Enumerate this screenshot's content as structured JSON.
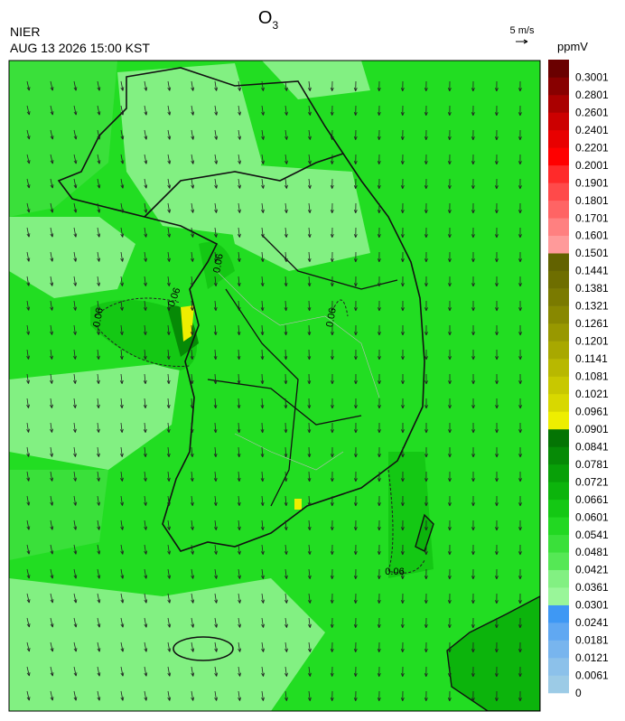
{
  "header": {
    "title": {
      "base": "O",
      "subscript": "3"
    },
    "agency": "NIER",
    "datetime": "AUG 13 2026 15:00 KST",
    "reference_vector": "5 m/s"
  },
  "colorbar": {
    "unit": "ppmV",
    "labels": [
      0,
      0.0061,
      0.0121,
      0.0181,
      0.0241,
      0.0301,
      0.0361,
      0.0421,
      0.0481,
      0.0541,
      0.0601,
      0.0661,
      0.0721,
      0.0781,
      0.0841,
      0.0901,
      0.0961,
      0.1021,
      0.1081,
      0.1141,
      0.1201,
      0.1261,
      0.1321,
      0.1381,
      0.1441,
      0.1501,
      0.1601,
      0.1701,
      0.1801,
      0.1901,
      0.2001,
      0.2201,
      0.2401,
      0.2601,
      0.2801,
      0.3001
    ],
    "colors": [
      "#9ccbe6",
      "#8cc1ea",
      "#78b5ee",
      "#60a8f2",
      "#3e98f4",
      "#99f699",
      "#82f082",
      "#55e855",
      "#3ae03a",
      "#22d822",
      "#14c814",
      "#0cb40c",
      "#08a008",
      "#068a06",
      "#047404",
      "#eeee00",
      "#d8d800",
      "#c8c800",
      "#b8b800",
      "#a8a800",
      "#989800",
      "#888800",
      "#7a7a00",
      "#6e6e00",
      "#626200",
      "#ff9a9a",
      "#ff8080",
      "#ff6464",
      "#ff4a4a",
      "#ff2a2a",
      "#ff0000",
      "#e80000",
      "#cc0000",
      "#aa0000",
      "#880000",
      "#6a0000"
    ]
  },
  "map": {
    "contour_labels": [
      "0.06",
      "0.06",
      "0.06",
      "0.06",
      "0.06"
    ]
  }
}
